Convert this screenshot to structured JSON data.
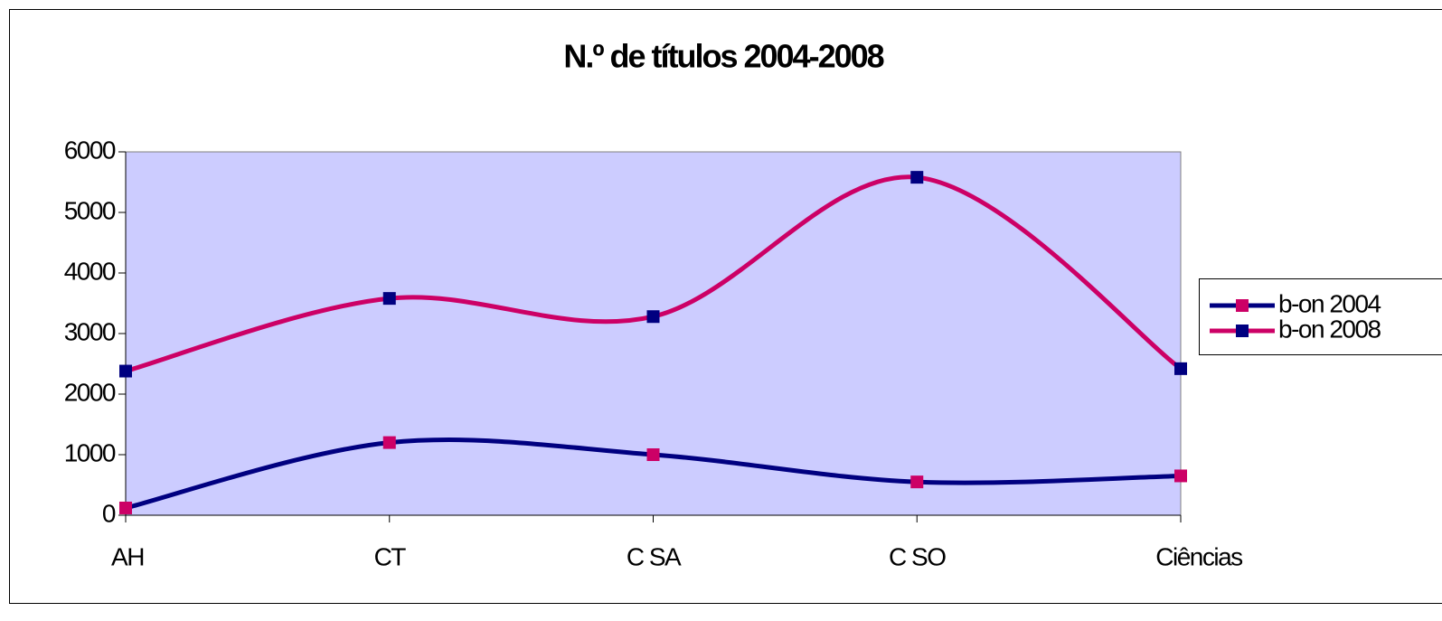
{
  "chart_data": {
    "type": "line",
    "title": "N.º de títulos 2004-2008",
    "categories": [
      "AH",
      "CT",
      "C SA",
      "C SO",
      "Ciências"
    ],
    "series": [
      {
        "name": "b-on 2004",
        "color": "#000080",
        "marker_color": "#cc0066",
        "values": [
          120,
          1200,
          1000,
          550,
          650
        ]
      },
      {
        "name": "b-on 2008",
        "color": "#cc0066",
        "marker_color": "#000080",
        "values": [
          2380,
          3580,
          3280,
          5580,
          2420
        ]
      }
    ],
    "ylim": [
      0,
      6000
    ],
    "yticks": [
      0,
      1000,
      2000,
      3000,
      4000,
      5000,
      6000
    ],
    "smooth": true,
    "grid": false,
    "legend": "right",
    "plot_background": "#ccccff"
  }
}
